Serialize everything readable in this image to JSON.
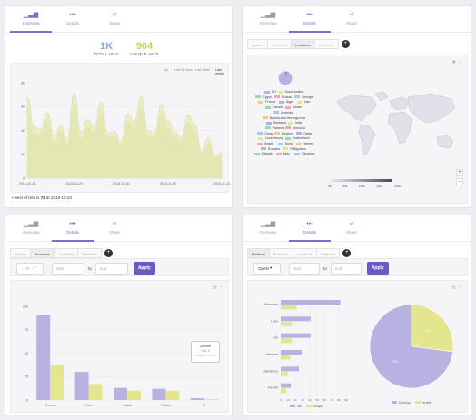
{
  "panels": {
    "p1": {
      "tabs": [
        {
          "label": "Overview",
          "icon": "bar-chart-icon"
        },
        {
          "label": "Details",
          "icon": "dots-icon"
        },
        {
          "label": "Share",
          "icon": "share-icon"
        }
      ],
      "total_hits": {
        "value": "1K",
        "label": "TOTAL HITS"
      },
      "unique_hits": {
        "value": "904",
        "label": "UNIQUE HITS"
      },
      "ranges": [
        "All",
        "Last 24 hours",
        "Last week",
        "Last month"
      ],
      "best_prefix": "Best of Hits is",
      "best_value": "72",
      "best_mid": "at",
      "best_date": "2015-10-23"
    },
    "p2": {
      "tabs": [
        {
          "label": "Overview",
          "icon": "bar-chart-icon"
        },
        {
          "label": "Details",
          "icon": "dots-icon"
        },
        {
          "label": "Share",
          "icon": "share-icon"
        }
      ],
      "filters": [
        "System",
        "Browsers",
        "Locations",
        "Referrers"
      ],
      "toolbar": [
        "▣",
        "≡"
      ],
      "map_scale": [
        "0k",
        "50k",
        "100k",
        "150k",
        "200k"
      ],
      "zoom_in": "+",
      "zoom_out": "−",
      "countries": [
        "UH",
        "Saudi Arabia",
        "Egypt",
        "Russia",
        "Georgia",
        "France",
        "Niger",
        "Iran",
        "Canada",
        "Ireland",
        "Australia",
        "Bosnia and Herzegovina",
        "Romania",
        "India",
        "Panama",
        "Morocco",
        "Oman",
        "Belgium",
        "Qatar",
        "Luxembourg",
        "Switzerland",
        "Brazil",
        "Syria",
        "Yemen",
        "Ecuador",
        "Philippines",
        "Albania",
        "Italy",
        "Slovenia"
      ]
    },
    "p3": {
      "tabs": [
        {
          "label": "Overview",
          "icon": "bar-chart-icon"
        },
        {
          "label": "Details",
          "icon": "dots-icon"
        },
        {
          "label": "Share",
          "icon": "share-icon"
        }
      ],
      "filters": [
        "System",
        "Browsers",
        "Locations",
        "Referrers"
      ],
      "select_value": "-- All --",
      "from_placeholder": "start",
      "to_label": "to",
      "to_placeholder": "end",
      "apply": "Apply",
      "tooltip_title": "Chrome",
      "tooltip_hits": "Hits: 0",
      "tooltip_unique": "Unique Hits: 0"
    },
    "p4": {
      "tabs": [
        {
          "label": "Overview",
          "icon": "bar-chart-icon"
        },
        {
          "label": "Details",
          "icon": "dots-icon"
        },
        {
          "label": "Share",
          "icon": "share-icon"
        }
      ],
      "filters": [
        "Platform",
        "Browsers",
        "Locations",
        "Referrers"
      ],
      "select_value": "OpeN",
      "from_placeholder": "start",
      "to_label": "to",
      "to_placeholder": "end",
      "apply": "Apply"
    }
  },
  "colors": {
    "hits": "#b9b2e0",
    "unique": "#e3e68f",
    "accent": "#6a5bc2",
    "map_land": "#e0e0e8"
  },
  "chart_data": [
    {
      "type": "area",
      "x": [
        "2015-10-16",
        "2015-10-17",
        "2015-10-18",
        "2015-10-19",
        "2015-10-20",
        "2015-10-21",
        "2015-10-22",
        "2015-10-23",
        "2015-10-24",
        "2015-10-25",
        "2015-10-26",
        "2015-10-27",
        "2015-10-28",
        "2015-10-29",
        "2015-10-30",
        "2015-10-31",
        "2015-11-01",
        "2015-11-02",
        "2015-11-03",
        "2015-11-04",
        "2015-11-05",
        "2015-11-06",
        "2015-11-07",
        "2015-11-08",
        "2015-11-09",
        "2015-11-10",
        "2015-11-11",
        "2015-11-12",
        "2015-11-13",
        "2015-11-14"
      ],
      "xticks": [
        "2015-10-16",
        "2015-10-23",
        "2015-10-30",
        "2015-11-06",
        "2015-11-14"
      ],
      "series": [
        {
          "name": "Hits",
          "values": [
            68,
            43,
            41,
            55,
            35,
            44,
            33,
            72,
            38,
            49,
            43,
            64,
            38,
            39,
            31,
            54,
            48,
            69,
            40,
            38,
            62,
            48,
            39,
            34,
            53,
            45,
            22,
            34,
            19,
            22
          ]
        },
        {
          "name": "Unique",
          "values": [
            60,
            38,
            37,
            50,
            30,
            40,
            29,
            63,
            33,
            43,
            38,
            56,
            34,
            35,
            28,
            48,
            42,
            60,
            35,
            34,
            55,
            42,
            34,
            30,
            47,
            40,
            20,
            30,
            17,
            20
          ]
        }
      ],
      "yticks": [
        0,
        20,
        40,
        60,
        80
      ],
      "ylim": [
        0,
        80
      ]
    },
    {
      "type": "bar",
      "categories": [
        "Chrome",
        "Other",
        "Safari",
        "Firefox",
        "IE"
      ],
      "series": [
        {
          "name": "Hits",
          "values": [
            91,
            30,
            13,
            12,
            2
          ]
        },
        {
          "name": "Unique",
          "values": [
            37,
            17,
            10,
            10,
            1
          ]
        }
      ],
      "yticks": [
        0,
        25,
        50,
        75,
        100
      ],
      "ylim": [
        0,
        100
      ]
    },
    {
      "type": "bar",
      "orientation": "horizontal",
      "categories": [
        "Macintosh",
        "Linux",
        "Ios",
        "Windows",
        "Blackberry",
        "Android"
      ],
      "series": [
        {
          "name": "Hits",
          "values": [
            82,
            41,
            41,
            30,
            25,
            14
          ]
        },
        {
          "name": "Unique",
          "values": [
            22,
            15,
            15,
            13,
            10,
            8
          ]
        }
      ],
      "legend": [
        "Hits",
        "Unique"
      ],
      "xticks": [
        0,
        10,
        20,
        30,
        40,
        50,
        60,
        70,
        80,
        90
      ],
      "xlim": [
        0,
        90
      ]
    },
    {
      "type": "pie",
      "labels": [
        "Desktop",
        "mobile"
      ],
      "values": [
        73,
        27
      ],
      "value_labels": [
        "73%",
        "27%"
      ],
      "colors": [
        "#b9b2e0",
        "#e3e68f"
      ]
    }
  ]
}
